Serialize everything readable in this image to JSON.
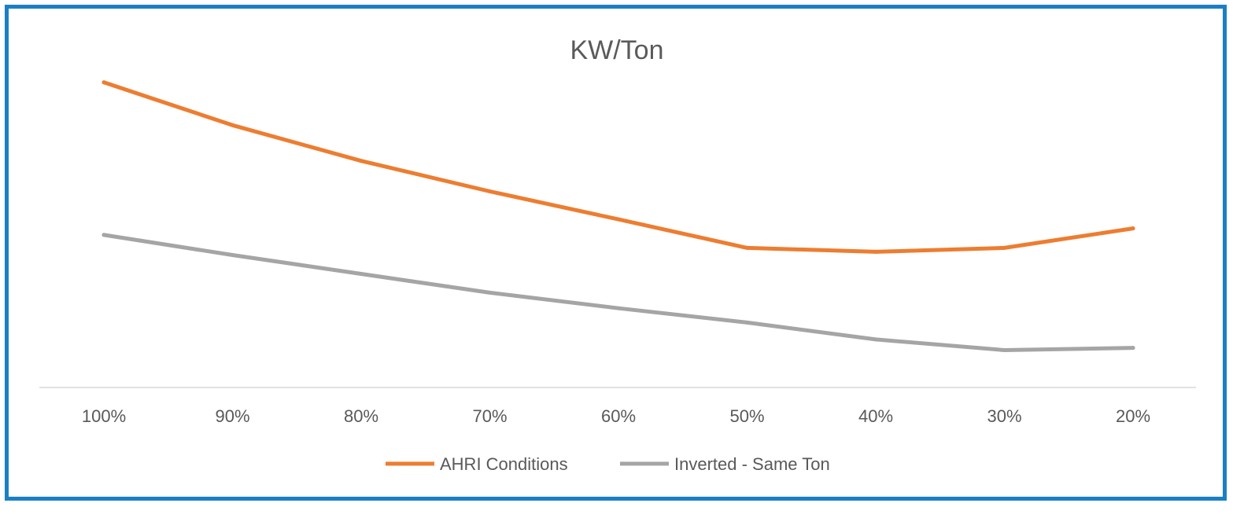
{
  "chart_data": {
    "type": "line",
    "title": "KW/Ton",
    "categories": [
      "100%",
      "90%",
      "80%",
      "70%",
      "60%",
      "50%",
      "40%",
      "30%",
      "20%"
    ],
    "series": [
      {
        "name": "AHRI Conditions",
        "color": "#ed7d31",
        "values": [
          0.94,
          0.808,
          0.698,
          0.604,
          0.518,
          0.43,
          0.418,
          0.43,
          0.49
        ]
      },
      {
        "name": "Inverted - Same Ton",
        "color": "#a5a5a5",
        "values": [
          0.47,
          0.408,
          0.35,
          0.292,
          0.244,
          0.2,
          0.148,
          0.115,
          0.122
        ]
      }
    ],
    "ylim": [
      0,
      1.0
    ],
    "grid": false,
    "legend": "bottom"
  }
}
